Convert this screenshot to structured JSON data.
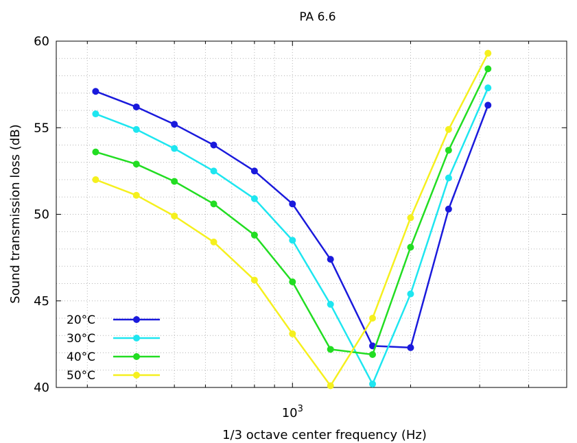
{
  "chart_data": {
    "type": "line",
    "title": "PA 6.6",
    "xlabel": "1/3 octave center frequency (Hz)",
    "ylabel": "Sound transmission loss (dB)",
    "x_scale": "log",
    "x_tick_label": {
      "base": "10",
      "exp": "3"
    },
    "xlim": [
      250,
      5000
    ],
    "ylim": [
      40,
      60
    ],
    "y_ticks": [
      40,
      45,
      50,
      55,
      60
    ],
    "grid": true,
    "legend_position": "bottom-left",
    "x": [
      315,
      400,
      500,
      630,
      800,
      1000,
      1250,
      1600,
      2000,
      2500,
      3150
    ],
    "series": [
      {
        "name": "20°C",
        "color": "#1a1adc",
        "values": [
          57.1,
          56.2,
          55.2,
          54.0,
          52.5,
          50.6,
          47.4,
          42.4,
          42.3,
          50.3,
          56.3
        ]
      },
      {
        "name": "30°C",
        "color": "#1ee6f0",
        "values": [
          55.8,
          54.9,
          53.8,
          52.5,
          50.9,
          48.5,
          44.8,
          40.2,
          45.4,
          52.1,
          57.3
        ]
      },
      {
        "name": "40°C",
        "color": "#22dd22",
        "values": [
          53.6,
          52.9,
          51.9,
          50.6,
          48.8,
          46.1,
          42.2,
          41.9,
          48.1,
          53.7,
          58.4
        ]
      },
      {
        "name": "50°C",
        "color": "#f5f01e",
        "values": [
          52.0,
          51.1,
          49.9,
          48.4,
          46.2,
          43.1,
          40.1,
          44.0,
          49.8,
          54.9,
          59.3
        ]
      }
    ]
  }
}
